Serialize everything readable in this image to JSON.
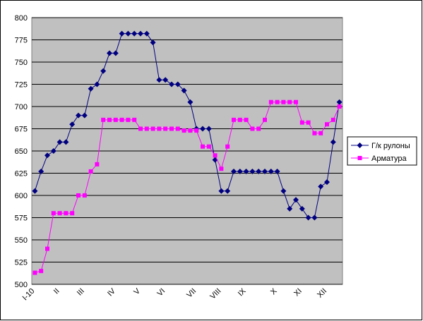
{
  "chart_data": {
    "type": "line",
    "categories": [
      "I-10",
      null,
      null,
      null,
      "II",
      null,
      null,
      null,
      "III",
      null,
      null,
      null,
      null,
      "IV",
      null,
      null,
      null,
      "V",
      null,
      null,
      null,
      "VI",
      null,
      null,
      null,
      null,
      "VII",
      null,
      null,
      null,
      "VIII",
      null,
      null,
      null,
      "IX",
      null,
      null,
      null,
      null,
      "X",
      null,
      null,
      null,
      "XI",
      null,
      null,
      null,
      "XII",
      null,
      null
    ],
    "series": [
      {
        "name": "Г/к рулоны",
        "color": "#000080",
        "marker": "diamond",
        "values": [
          605,
          627,
          645,
          650,
          660,
          660,
          680,
          690,
          690,
          720,
          725,
          740,
          760,
          760,
          782,
          782,
          782,
          782,
          782,
          772,
          730,
          730,
          725,
          725,
          718,
          705,
          675,
          675,
          675,
          640,
          605,
          605,
          627,
          627,
          627,
          627,
          627,
          627,
          627,
          627,
          605,
          585,
          595,
          585,
          575,
          575,
          610,
          615,
          660,
          705
        ]
      },
      {
        "name": "Арматура",
        "color": "#ff00ff",
        "marker": "square",
        "values": [
          513,
          515,
          540,
          580,
          580,
          580,
          580,
          600,
          600,
          627,
          635,
          685,
          685,
          685,
          685,
          685,
          685,
          675,
          675,
          675,
          675,
          675,
          675,
          675,
          673,
          673,
          673,
          655,
          655,
          645,
          630,
          655,
          685,
          685,
          685,
          675,
          675,
          685,
          705,
          705,
          705,
          705,
          705,
          682,
          682,
          670,
          670,
          680,
          685,
          700
        ]
      }
    ],
    "ylim": [
      500,
      800
    ],
    "yticks": [
      500,
      525,
      550,
      575,
      600,
      625,
      650,
      675,
      700,
      725,
      750,
      775,
      800
    ],
    "grid": true,
    "legend": "right"
  }
}
